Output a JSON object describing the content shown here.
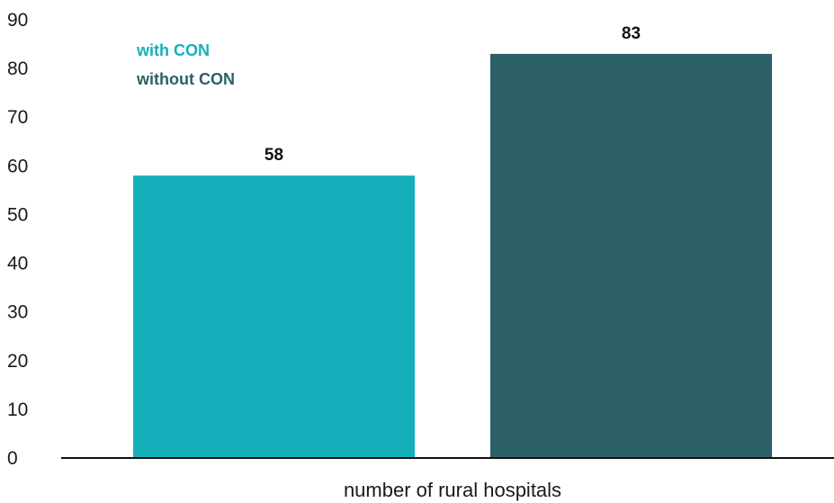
{
  "chart_data": {
    "type": "bar",
    "categories": [
      "number of rural hospitals"
    ],
    "series": [
      {
        "name": "with CON",
        "values": [
          58
        ],
        "color": "#16afbc"
      },
      {
        "name": "without CON",
        "values": [
          83
        ],
        "color": "#2b6066"
      }
    ],
    "title": "",
    "xlabel": "number of rural hospitals",
    "ylabel": "",
    "ylim": [
      0,
      90
    ],
    "yticks": [
      0,
      10,
      20,
      30,
      40,
      50,
      60,
      70,
      80,
      90
    ],
    "grid": false,
    "legend_placement": "top-left",
    "show_data_labels": true
  }
}
